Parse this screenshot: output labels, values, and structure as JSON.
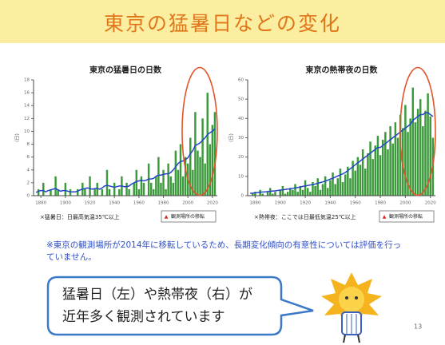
{
  "header": {
    "title": "東京の猛暑日などの変化"
  },
  "chart_data": [
    {
      "type": "bar",
      "title": "東京の猛暑日の日数",
      "y_label": "(日)",
      "x": [
        1876,
        1878,
        1880,
        1882,
        1884,
        1886,
        1888,
        1890,
        1892,
        1894,
        1896,
        1898,
        1900,
        1902,
        1904,
        1906,
        1908,
        1910,
        1912,
        1914,
        1916,
        1918,
        1920,
        1922,
        1924,
        1926,
        1928,
        1930,
        1932,
        1934,
        1936,
        1938,
        1940,
        1942,
        1944,
        1946,
        1948,
        1950,
        1952,
        1954,
        1956,
        1958,
        1960,
        1962,
        1964,
        1966,
        1968,
        1970,
        1972,
        1974,
        1976,
        1978,
        1980,
        1982,
        1984,
        1986,
        1988,
        1990,
        1992,
        1994,
        1996,
        1998,
        2000,
        2002,
        2004,
        2006,
        2008,
        2010,
        2012,
        2014,
        2016,
        2018,
        2020,
        2022
      ],
      "series": [
        {
          "type": "bar",
          "color": "#3c9a3c",
          "values": [
            0,
            1,
            0,
            2,
            0,
            0,
            1,
            0,
            3,
            1,
            0,
            0,
            2,
            0,
            1,
            0,
            0,
            1,
            0,
            2,
            1,
            0,
            3,
            0,
            1,
            2,
            0,
            1,
            0,
            4,
            1,
            0,
            2,
            0,
            1,
            3,
            0,
            2,
            1,
            0,
            2,
            4,
            1,
            3,
            2,
            0,
            5,
            2,
            1,
            3,
            6,
            2,
            4,
            1,
            5,
            3,
            2,
            7,
            4,
            8,
            3,
            6,
            5,
            9,
            4,
            13,
            7,
            6,
            12,
            5,
            16,
            8,
            11,
            13
          ]
        },
        {
          "type": "line",
          "color": "#2345c8",
          "values": [
            0.5,
            0.7,
            0.8,
            0.8,
            0.6,
            0.8,
            0.9,
            1.0,
            1.1,
            0.9,
            0.7,
            0.8,
            0.8,
            0.7,
            0.6,
            0.6,
            0.6,
            0.7,
            0.9,
            1.0,
            1.1,
            1.2,
            1.1,
            1.0,
            1.1,
            1.1,
            1.0,
            1.2,
            1.5,
            1.6,
            1.5,
            1.4,
            1.3,
            1.4,
            1.5,
            1.5,
            1.4,
            1.4,
            1.5,
            1.8,
            2.0,
            2.2,
            2.3,
            2.4,
            2.3,
            2.4,
            2.6,
            2.6,
            2.7,
            3.0,
            3.2,
            3.2,
            3.3,
            3.4,
            3.4,
            3.6,
            4.0,
            4.5,
            5.0,
            5.3,
            5.4,
            5.6,
            5.9,
            6.5,
            7.0,
            7.8,
            8.0,
            8.2,
            8.6,
            9.0,
            9.5,
            9.8,
            10.0,
            10.4
          ]
        }
      ],
      "xlim": [
        1874,
        2024
      ],
      "xticks": [
        1880,
        1900,
        1920,
        1940,
        1960,
        1980,
        2000,
        2020
      ],
      "ylim": [
        0,
        18
      ],
      "yticks": [
        0,
        2,
        4,
        6,
        8,
        10,
        12,
        14,
        16,
        18
      ],
      "legend_label": "観測場所の移転",
      "note": "×猛暑日：日最高気温35℃以上"
    },
    {
      "type": "bar",
      "title": "東京の熱帯夜の日数",
      "y_label": "(日)",
      "x": [
        1876,
        1878,
        1880,
        1882,
        1884,
        1886,
        1888,
        1890,
        1892,
        1894,
        1896,
        1898,
        1900,
        1902,
        1904,
        1906,
        1908,
        1910,
        1912,
        1914,
        1916,
        1918,
        1920,
        1922,
        1924,
        1926,
        1928,
        1930,
        1932,
        1934,
        1936,
        1938,
        1940,
        1942,
        1944,
        1946,
        1948,
        1950,
        1952,
        1954,
        1956,
        1958,
        1960,
        1962,
        1964,
        1966,
        1968,
        1970,
        1972,
        1974,
        1976,
        1978,
        1980,
        1982,
        1984,
        1986,
        1988,
        1990,
        1992,
        1994,
        1996,
        1998,
        2000,
        2002,
        2004,
        2006,
        2008,
        2010,
        2012,
        2014,
        2016,
        2018,
        2020,
        2022
      ],
      "series": [
        {
          "type": "bar",
          "color": "#3c9a3c",
          "values": [
            0,
            1,
            2,
            0,
            3,
            1,
            0,
            2,
            4,
            1,
            2,
            0,
            3,
            5,
            1,
            2,
            4,
            3,
            6,
            2,
            5,
            3,
            8,
            4,
            2,
            7,
            5,
            9,
            3,
            6,
            10,
            4,
            8,
            12,
            6,
            9,
            14,
            7,
            11,
            15,
            9,
            18,
            13,
            20,
            16,
            24,
            14,
            22,
            28,
            19,
            26,
            31,
            21,
            29,
            33,
            24,
            36,
            27,
            38,
            30,
            42,
            35,
            47,
            33,
            40,
            56,
            38,
            45,
            50,
            36,
            44,
            53,
            41,
            30
          ]
        },
        {
          "type": "line",
          "color": "#2345c8",
          "values": [
            1.2,
            1.3,
            1.5,
            1.6,
            1.8,
            1.9,
            2.0,
            2.1,
            2.3,
            2.4,
            2.5,
            2.7,
            2.9,
            3.0,
            3.2,
            3.4,
            3.5,
            3.8,
            4.0,
            4.2,
            4.5,
            4.8,
            5.0,
            5.3,
            5.5,
            5.8,
            6.0,
            6.4,
            6.8,
            7.1,
            7.5,
            8.0,
            8.6,
            9.0,
            9.6,
            10.2,
            10.8,
            11.3,
            12,
            13,
            14,
            15,
            16,
            17,
            18,
            19,
            20,
            21,
            22,
            23,
            24,
            25,
            25,
            26,
            27,
            28,
            29,
            30,
            31,
            32,
            33,
            34,
            35,
            36,
            37,
            39,
            40,
            41,
            42,
            42,
            43,
            43,
            42,
            41
          ]
        }
      ],
      "xlim": [
        1874,
        2024
      ],
      "xticks": [
        1880,
        1900,
        1920,
        1940,
        1960,
        1980,
        2000,
        2020
      ],
      "ylim": [
        0,
        60
      ],
      "yticks": [
        0,
        10,
        20,
        30,
        40,
        50,
        60
      ],
      "legend_label": "観測場所の移転",
      "note": "×熱帯夜：ここでは日最低気温25℃以上"
    }
  ],
  "caution": "※東京の観測場所が2014年に移転しているため、長期変化傾向の有意性については評価を行っていません。",
  "bubble": {
    "line1": "猛暑日（左）や熱帯夜（右）が",
    "line2": "近年多く観測されています"
  },
  "page_number": "13"
}
